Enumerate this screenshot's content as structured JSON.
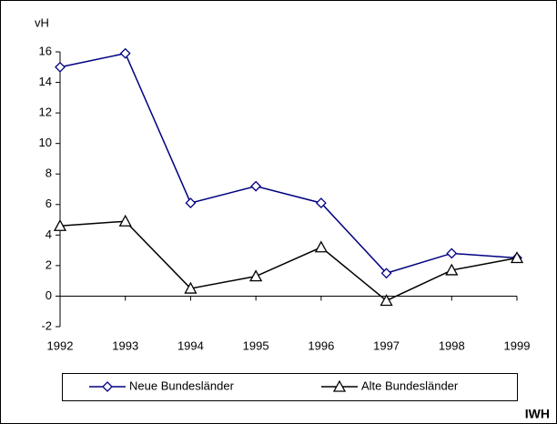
{
  "chart_data": {
    "type": "line",
    "ylabel": "vH",
    "source": "IWH",
    "categories": [
      "1992",
      "1993",
      "1994",
      "1995",
      "1996",
      "1997",
      "1998",
      "1999"
    ],
    "series": [
      {
        "name": "Neue Bundesländer",
        "color": "#000080",
        "marker": "diamond",
        "values": [
          15.0,
          15.9,
          6.1,
          7.2,
          6.1,
          1.5,
          2.8,
          2.5
        ]
      },
      {
        "name": "Alte Bundesländer",
        "color": "#000000",
        "marker": "triangle",
        "values": [
          4.6,
          4.9,
          0.5,
          1.3,
          3.2,
          -0.3,
          1.7,
          2.5
        ]
      }
    ],
    "ylim": [
      -2,
      16
    ],
    "yticks": [
      -2,
      0,
      2,
      4,
      6,
      8,
      10,
      12,
      14,
      16
    ],
    "grid": false
  }
}
